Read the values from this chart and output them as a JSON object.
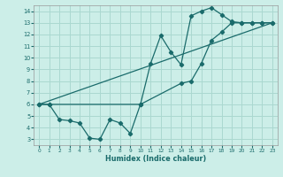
{
  "xlabel": "Humidex (Indice chaleur)",
  "background_color": "#cceee8",
  "grid_color": "#aad8d0",
  "line_color": "#1a6b6b",
  "xlim": [
    -0.5,
    23.5
  ],
  "ylim": [
    2.5,
    14.5
  ],
  "xticks": [
    0,
    1,
    2,
    3,
    4,
    5,
    6,
    7,
    8,
    9,
    10,
    11,
    12,
    13,
    14,
    15,
    16,
    17,
    18,
    19,
    20,
    21,
    22,
    23
  ],
  "yticks": [
    3,
    4,
    5,
    6,
    7,
    8,
    9,
    10,
    11,
    12,
    13,
    14
  ],
  "line1_x": [
    0,
    1,
    2,
    3,
    4,
    5,
    6,
    7,
    8,
    9,
    10,
    11,
    12,
    13,
    14,
    15,
    16,
    17,
    18,
    19,
    20,
    21,
    22,
    23
  ],
  "line1_y": [
    6.0,
    6.0,
    4.7,
    4.6,
    4.4,
    3.1,
    3.0,
    4.7,
    4.4,
    3.5,
    6.0,
    9.5,
    11.9,
    10.5,
    9.4,
    13.6,
    14.0,
    14.3,
    13.7,
    13.1,
    13.0,
    13.0,
    13.0,
    13.0
  ],
  "line2_x": [
    0,
    1,
    10,
    14,
    15,
    16,
    17,
    18,
    19,
    20,
    21,
    22,
    23
  ],
  "line2_y": [
    6.0,
    6.0,
    6.0,
    7.8,
    8.0,
    9.5,
    11.5,
    12.2,
    13.0,
    13.0,
    13.0,
    13.0,
    13.0
  ],
  "line3_x": [
    0,
    23
  ],
  "line3_y": [
    6.0,
    13.0
  ]
}
